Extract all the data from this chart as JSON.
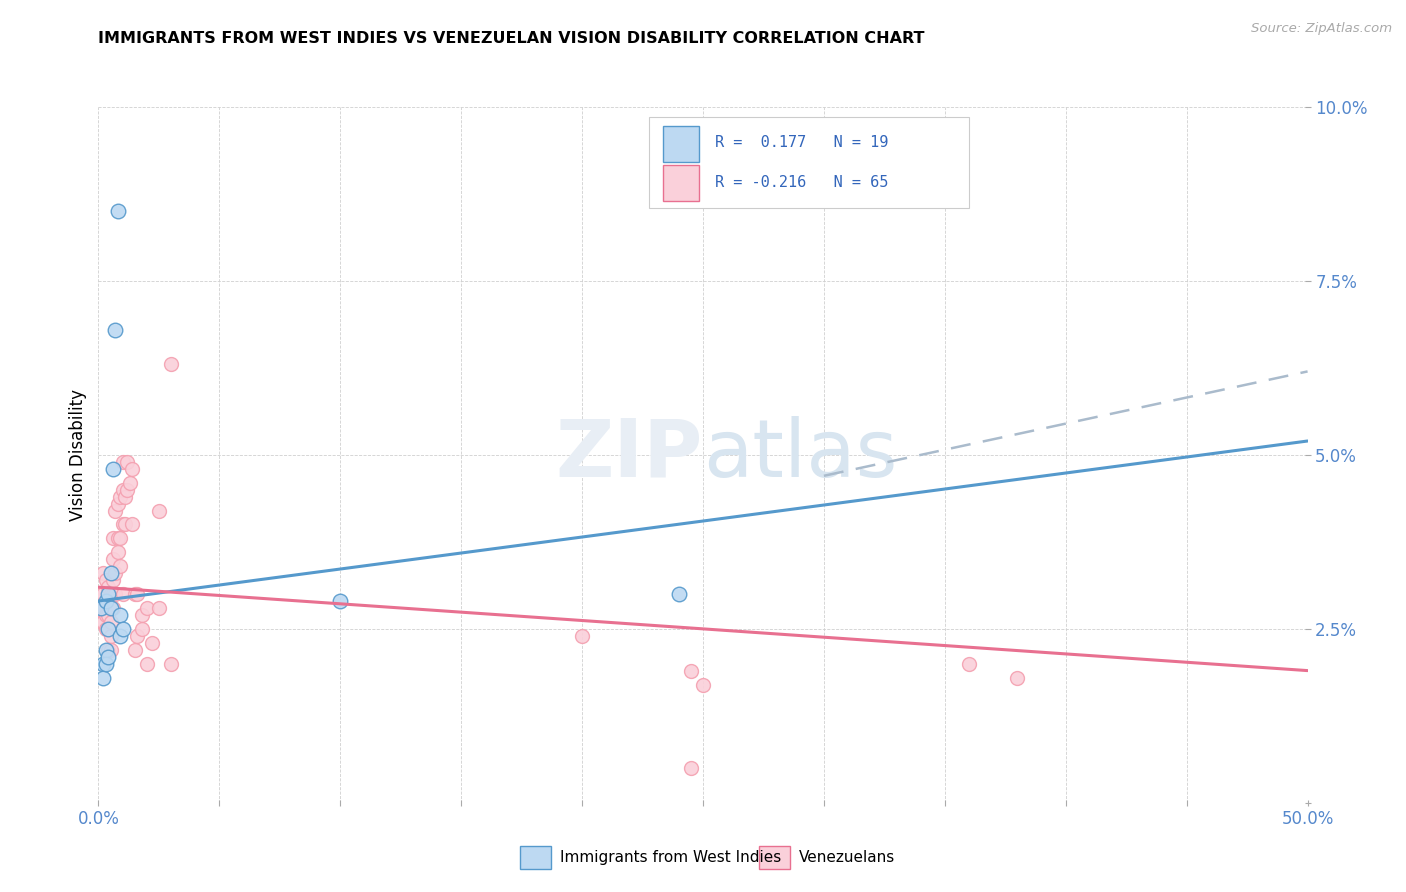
{
  "title": "IMMIGRANTS FROM WEST INDIES VS VENEZUELAN VISION DISABILITY CORRELATION CHART",
  "source": "Source: ZipAtlas.com",
  "ylabel": "Vision Disability",
  "legend_r1": "R =  0.177   N = 19",
  "legend_r2": "R = -0.216   N = 65",
  "legend_label1": "Immigrants from West Indies",
  "legend_label2": "Venezuelans",
  "color_blue": "#7EB4E2",
  "color_pink": "#F4A0B0",
  "color_blue_dark": "#5599CC",
  "color_pink_dark": "#E87090",
  "color_blue_fill": "#BDD9F2",
  "color_pink_fill": "#FAD0DA",
  "watermark": "ZIPatlas",
  "xmin": 0.0,
  "xmax": 0.5,
  "ymin": 0.0,
  "ymax": 0.1,
  "yticks": [
    0.0,
    0.025,
    0.05,
    0.075,
    0.1
  ],
  "ytick_labels": [
    "",
    "2.5%",
    "5.0%",
    "7.5%",
    "10.0%"
  ],
  "xticks": [
    0.0,
    0.05,
    0.1,
    0.15,
    0.2,
    0.25,
    0.3,
    0.35,
    0.4,
    0.45,
    0.5
  ],
  "blue_x": [
    0.001,
    0.002,
    0.002,
    0.003,
    0.003,
    0.003,
    0.004,
    0.004,
    0.004,
    0.005,
    0.005,
    0.006,
    0.007,
    0.008,
    0.009,
    0.009,
    0.01,
    0.24,
    0.1
  ],
  "blue_y": [
    0.028,
    0.02,
    0.018,
    0.029,
    0.022,
    0.02,
    0.03,
    0.025,
    0.021,
    0.033,
    0.028,
    0.048,
    0.068,
    0.085,
    0.027,
    0.024,
    0.025,
    0.03,
    0.029
  ],
  "pink_x": [
    0.001,
    0.001,
    0.001,
    0.002,
    0.002,
    0.002,
    0.002,
    0.003,
    0.003,
    0.003,
    0.003,
    0.004,
    0.004,
    0.004,
    0.004,
    0.004,
    0.005,
    0.005,
    0.005,
    0.005,
    0.005,
    0.006,
    0.006,
    0.006,
    0.006,
    0.006,
    0.007,
    0.007,
    0.007,
    0.008,
    0.008,
    0.008,
    0.009,
    0.009,
    0.009,
    0.01,
    0.01,
    0.01,
    0.01,
    0.011,
    0.011,
    0.012,
    0.012,
    0.013,
    0.014,
    0.014,
    0.015,
    0.015,
    0.016,
    0.016,
    0.018,
    0.018,
    0.02,
    0.02,
    0.022,
    0.025,
    0.025,
    0.03,
    0.03,
    0.2,
    0.245,
    0.25,
    0.36,
    0.38,
    0.245
  ],
  "pink_y": [
    0.03,
    0.028,
    0.026,
    0.033,
    0.03,
    0.028,
    0.026,
    0.032,
    0.029,
    0.027,
    0.025,
    0.031,
    0.029,
    0.027,
    0.025,
    0.022,
    0.03,
    0.028,
    0.026,
    0.024,
    0.022,
    0.038,
    0.035,
    0.032,
    0.03,
    0.028,
    0.042,
    0.033,
    0.03,
    0.043,
    0.038,
    0.036,
    0.044,
    0.038,
    0.034,
    0.049,
    0.045,
    0.04,
    0.03,
    0.044,
    0.04,
    0.049,
    0.045,
    0.046,
    0.048,
    0.04,
    0.03,
    0.022,
    0.03,
    0.024,
    0.027,
    0.025,
    0.028,
    0.02,
    0.023,
    0.042,
    0.028,
    0.02,
    0.063,
    0.024,
    0.019,
    0.017,
    0.02,
    0.018,
    0.005
  ],
  "blue_trend_x": [
    0.0,
    0.5
  ],
  "blue_trend_y": [
    0.029,
    0.052
  ],
  "pink_trend_x": [
    0.0,
    0.5
  ],
  "pink_trend_y": [
    0.031,
    0.019
  ],
  "dashed_trend_x": [
    0.3,
    0.5
  ],
  "dashed_trend_y": [
    0.047,
    0.062
  ]
}
